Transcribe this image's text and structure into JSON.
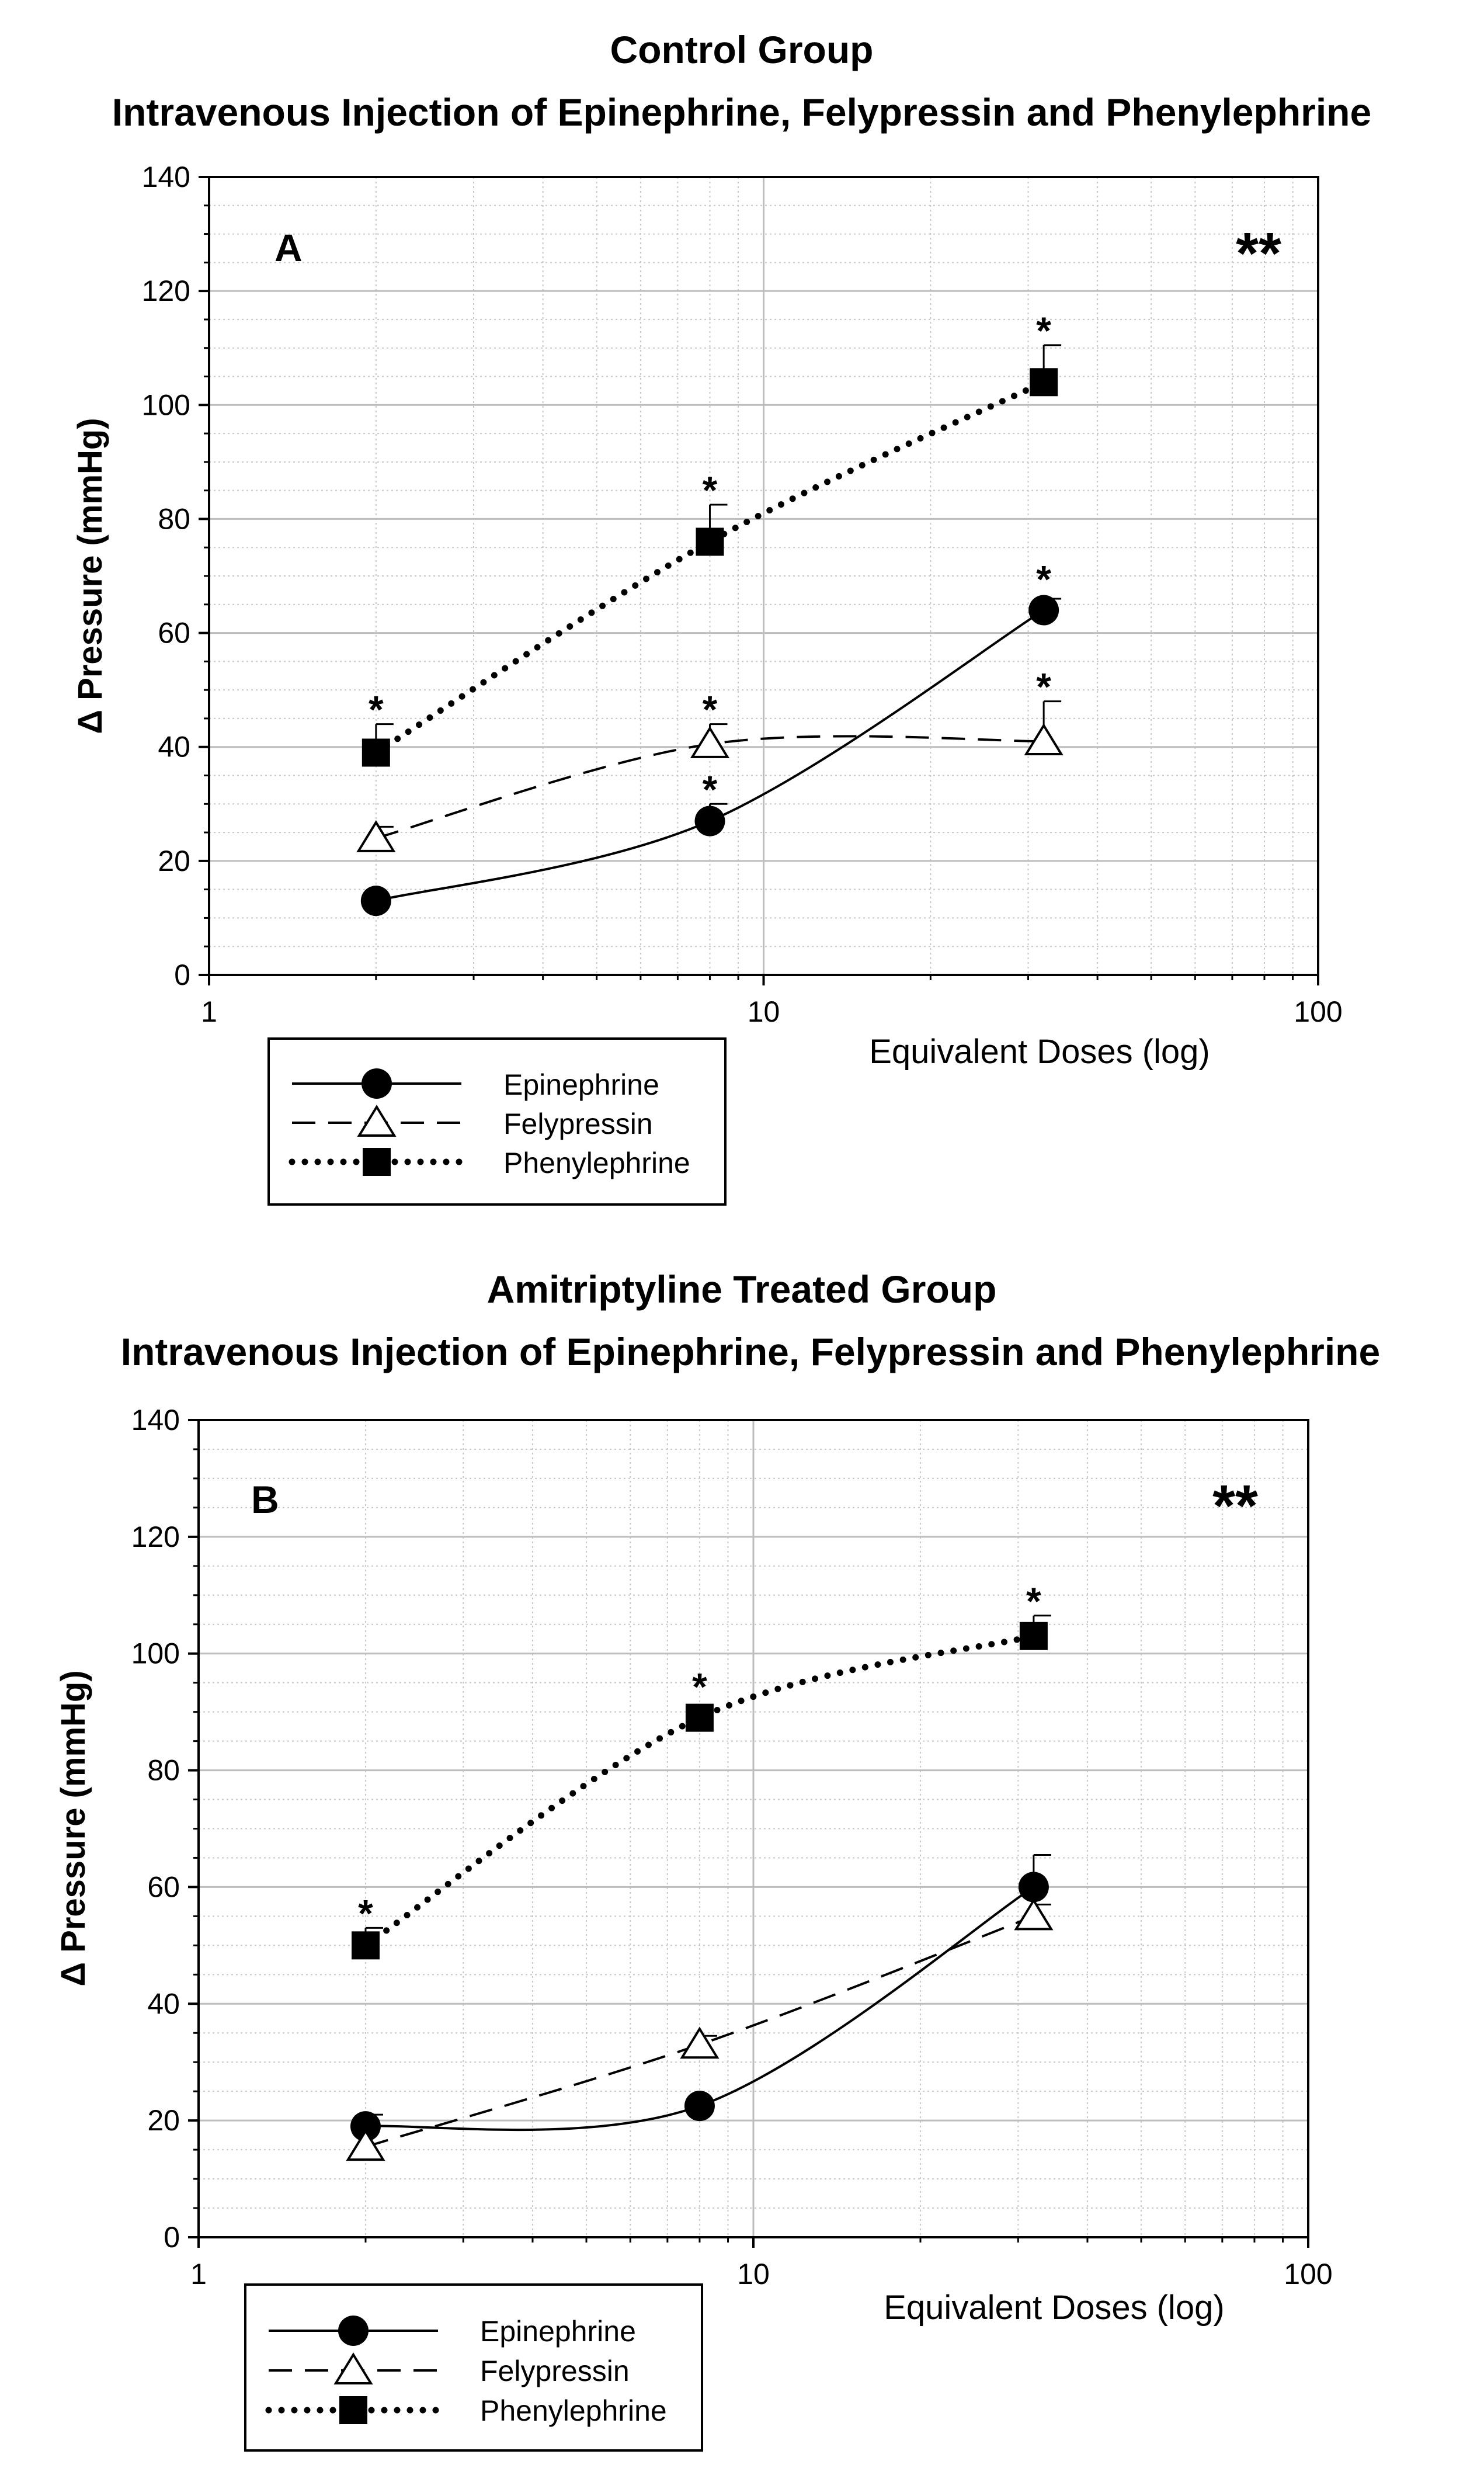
{
  "panels": [
    {
      "title_line1": "Control Group",
      "title_line2": "Intravenous Injection of Epinephrine, Felypressin and Phenylephrine",
      "panel_label": "A",
      "significance": "**",
      "xlabel": "Equivalent Doses (log)",
      "ylabel": "Δ  Pressure (mmHg)",
      "xticks": [
        "1",
        "10",
        "100"
      ],
      "yticks": [
        "0",
        "20",
        "40",
        "60",
        "80",
        "100",
        "120",
        "140"
      ],
      "legend": [
        "Epinephrine",
        "Felypressin",
        "Phenylephrine"
      ]
    },
    {
      "title_line1": "Amitriptyline Treated  Group",
      "title_line2": "Intravenous Injection of Epinephrine, Felypressin and Phenylephrine",
      "panel_label": "B",
      "significance": "**",
      "xlabel": "Equivalent Doses (log)",
      "ylabel": "Δ  Pressure (mmHg)",
      "xticks": [
        "1",
        "10",
        "100"
      ],
      "yticks": [
        "0",
        "20",
        "40",
        "60",
        "80",
        "100",
        "120",
        "140"
      ],
      "legend": [
        "Epinephrine",
        "Felypressin",
        "Phenylephrine"
      ]
    }
  ],
  "chart_data": [
    {
      "type": "line",
      "title": "Control Group — Intravenous Injection of Epinephrine, Felypressin and Phenylephrine",
      "xlabel": "Equivalent Doses (log)",
      "ylabel": "Δ Pressure (mmHg)",
      "xscale": "log",
      "xlim": [
        1,
        100
      ],
      "ylim": [
        0,
        140
      ],
      "grid": true,
      "legend_position": "below-left",
      "x": [
        2,
        8,
        32
      ],
      "series": [
        {
          "name": "Epinephrine",
          "marker": "filled-circle",
          "line": "solid",
          "values": [
            13,
            27,
            64
          ],
          "errors": [
            0,
            3,
            2
          ],
          "significant": [
            false,
            true,
            true
          ]
        },
        {
          "name": "Felypressin",
          "marker": "open-triangle",
          "line": "dashed",
          "values": [
            24,
            40.5,
            41
          ],
          "errors": [
            2,
            3.5,
            7
          ],
          "significant": [
            false,
            true,
            true
          ]
        },
        {
          "name": "Phenylephrine",
          "marker": "filled-square",
          "line": "dotted",
          "values": [
            39,
            76,
            104
          ],
          "errors": [
            5,
            6.5,
            6.5
          ],
          "significant": [
            true,
            true,
            true
          ]
        }
      ]
    },
    {
      "type": "line",
      "title": "Amitriptyline Treated Group — Intravenous Injection of Epinephrine, Felypressin and Phenylephrine",
      "xlabel": "Equivalent Doses (log)",
      "ylabel": "Δ Pressure (mmHg)",
      "xscale": "log",
      "xlim": [
        1,
        100
      ],
      "ylim": [
        0,
        140
      ],
      "grid": true,
      "legend_position": "below-left",
      "x": [
        2,
        8,
        32
      ],
      "series": [
        {
          "name": "Epinephrine",
          "marker": "filled-circle",
          "line": "solid",
          "values": [
            19,
            22.5,
            60
          ],
          "errors": [
            2,
            0,
            5.5
          ],
          "significant": [
            false,
            false,
            false
          ]
        },
        {
          "name": "Felypressin",
          "marker": "open-triangle",
          "line": "dashed",
          "values": [
            15.5,
            33,
            55
          ],
          "errors": [
            0,
            1.5,
            2
          ],
          "significant": [
            false,
            false,
            false
          ]
        },
        {
          "name": "Phenylephrine",
          "marker": "filled-square",
          "line": "dotted",
          "values": [
            50,
            89,
            103
          ],
          "errors": [
            3,
            0,
            3.5
          ],
          "significant": [
            true,
            true,
            true
          ]
        }
      ]
    }
  ]
}
